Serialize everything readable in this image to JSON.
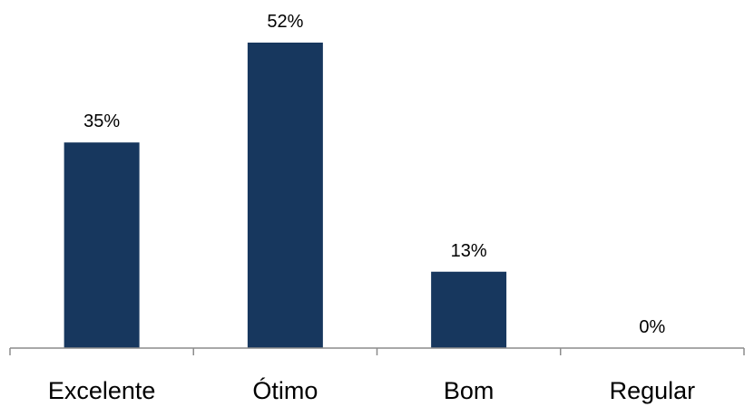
{
  "chart_data": {
    "type": "bar",
    "categories": [
      "Excelente",
      "Ótimo",
      "Bom",
      "Regular"
    ],
    "values": [
      35,
      52,
      13,
      0
    ],
    "data_labels": [
      "35%",
      "52%",
      "13%",
      "0%"
    ],
    "ylim": [
      0,
      52
    ],
    "grid": false,
    "legend": "none",
    "bar_color": "#17375e",
    "axis_color": "#8c8c8c"
  }
}
